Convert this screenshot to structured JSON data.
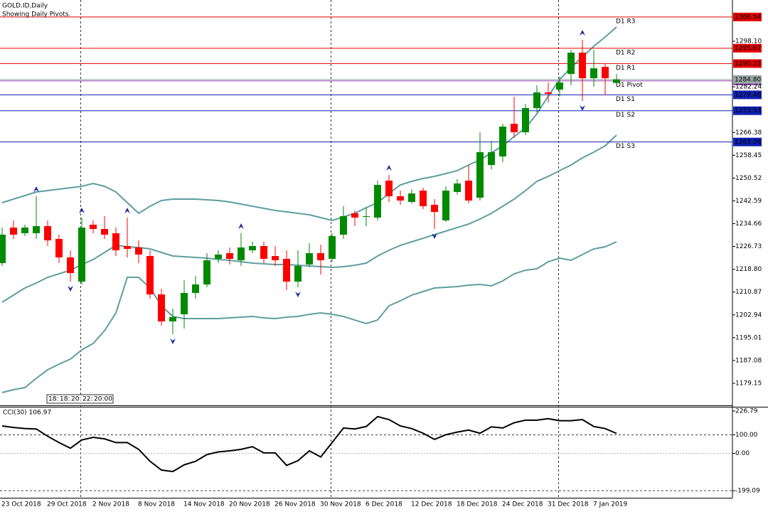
{
  "chart_data": {
    "type": "candlestick",
    "title": "GOLD.ID,Daily",
    "subtitle": "Showing Daily Pivots.",
    "categories": [
      "23 Oct 2018",
      null,
      null,
      null,
      "29 Oct 2018",
      null,
      null,
      null,
      "2 Nov 2018",
      null,
      null,
      null,
      "8 Nov 2018",
      null,
      null,
      null,
      "14 Nov 2018",
      null,
      null,
      null,
      "20 Nov 2018",
      null,
      null,
      null,
      "26 Nov 2018",
      null,
      null,
      null,
      "30 Nov 2018",
      null,
      null,
      null,
      "6 Dec 2018",
      null,
      null,
      null,
      "12 Dec 2018",
      null,
      null,
      null,
      "18 Dec 2018",
      null,
      null,
      null,
      "24 Dec 2018",
      null,
      null,
      null,
      "31 Dec 2018",
      null,
      null,
      null,
      "7 Jan 2019",
      null,
      null
    ],
    "open": [
      1220.93,
      1233.3,
      1231.33,
      1231.33,
      1233.8,
      1229.35,
      1222.92,
      1214.51,
      1234.3,
      1232.81,
      1231.33,
      1226.87,
      1226.38,
      1223.41,
      1210.06,
      1200.66,
      1203.14,
      1210.56,
      1213.52,
      1222.42,
      1224.4,
      1221.93,
      1225.39,
      1226.87,
      1223.41,
      1222.42,
      1214.51,
      1220.44,
      1224.4,
      1222.42,
      1230.83,
      1238.25,
      1237.01,
      1236.77,
      1249.63,
      1244.18,
      1242.21,
      1246.16,
      1241.22,
      1235.78,
      1245.67,
      1249.63,
      1243.69,
      1255.07,
      1258.03,
      1269.41,
      1266.44,
      1274.85,
      1280.29,
      1281.28,
      1286.72,
      1294.14,
      1285.24,
      1289.19,
      1283.6
    ],
    "high": [
      1233.3,
      1235.78,
      1234.3,
      1244.18,
      1235.78,
      1230.83,
      1225.39,
      1236.77,
      1235.78,
      1237.26,
      1233.3,
      1236.77,
      1228.85,
      1225.39,
      1212.0,
      1205.11,
      1215.0,
      1216.48,
      1224.4,
      1225.39,
      1226.38,
      1231.33,
      1228.36,
      1228.36,
      1226.87,
      1225.39,
      1225.39,
      1227.86,
      1227.37,
      1231.33,
      1240.72,
      1239.24,
      1240.23,
      1249.63,
      1251.61,
      1246.16,
      1246.66,
      1247.15,
      1243.2,
      1247.65,
      1250.12,
      1255.07,
      1266.44,
      1263.48,
      1269.41,
      1278.81,
      1276.33,
      1282.76,
      1283.75,
      1285.73,
      1295.13,
      1298.59,
      1295.13,
      1290.18,
      1286.7
    ],
    "low": [
      1219.95,
      1229.35,
      1230.34,
      1229.35,
      1226.87,
      1220.93,
      1214.51,
      1213.52,
      1231.33,
      1229.35,
      1223.41,
      1222.92,
      1220.93,
      1208.57,
      1199.18,
      1196.21,
      1198.19,
      1208.57,
      1212.53,
      1220.93,
      1220.44,
      1219.95,
      1224.4,
      1220.93,
      1219.95,
      1211.55,
      1212.53,
      1219.46,
      1216.99,
      1221.43,
      1229.35,
      1233.8,
      1233.8,
      1235.78,
      1242.21,
      1241.22,
      1241.71,
      1239.73,
      1232.81,
      1235.29,
      1244.68,
      1241.71,
      1242.7,
      1253.58,
      1256.06,
      1264.47,
      1265.45,
      1273.37,
      1276.83,
      1278.81,
      1282.76,
      1277.32,
      1282.27,
      1279.3,
      1283.0
    ],
    "close": [
      1230.83,
      1230.83,
      1233.3,
      1233.8,
      1228.85,
      1222.92,
      1217.48,
      1233.3,
      1232.81,
      1230.83,
      1225.39,
      1225.89,
      1223.91,
      1210.06,
      1200.66,
      1202.15,
      1210.56,
      1213.52,
      1221.93,
      1223.91,
      1222.42,
      1226.38,
      1226.87,
      1222.42,
      1221.93,
      1214.51,
      1219.95,
      1224.4,
      1221.93,
      1230.34,
      1237.26,
      1236.77,
      1237.26,
      1248.14,
      1244.18,
      1242.7,
      1245.17,
      1240.72,
      1238.74,
      1246.16,
      1248.63,
      1242.7,
      1259.52,
      1259.52,
      1268.42,
      1266.44,
      1274.85,
      1280.29,
      1279.8,
      1283.75,
      1294.14,
      1285.24,
      1288.7,
      1285.24,
      1284.8
    ],
    "up_color": "#008a00",
    "down_color": "#ff0000",
    "ylim": [
      1171.48,
      1312.44
    ],
    "yticks": [
      {
        "value": 1298.1,
        "label": "1298.10"
      },
      1282.24,
      1266.38,
      1258.45,
      1250.52,
      1242.59,
      1234.66,
      1226.73,
      {
        "value": 1218.8,
        "label": "1218.80"
      },
      1210.87,
      1202.94,
      1195.01,
      1187.08,
      1179.15
    ],
    "bollinger": {
      "color": "#5f9ea0",
      "upper": [
        1241.96,
        1243.2,
        1244.43,
        1245.67,
        1246.16,
        1246.66,
        1247.15,
        1247.65,
        1248.64,
        1247.65,
        1245.67,
        1241.96,
        1238.25,
        1240.72,
        1242.7,
        1243.2,
        1243.2,
        1243.2,
        1242.95,
        1242.7,
        1242.21,
        1241.46,
        1240.72,
        1239.98,
        1239.24,
        1238.74,
        1238.25,
        1237.76,
        1236.77,
        1235.78,
        1237.01,
        1238.25,
        1240.23,
        1241.96,
        1245.17,
        1248.14,
        1249.38,
        1250.37,
        1251.11,
        1252.1,
        1253.09,
        1255.07,
        1256.8,
        1259.27,
        1261.74,
        1264.96,
        1267.93,
        1272.87,
        1279.05,
        1284.74,
        1288.95,
        1292.66,
        1296.37,
        1299.58,
        1303.04
      ],
      "middle": [
        1207.34,
        1209.81,
        1212.28,
        1214.01,
        1215.99,
        1217.23,
        1218.47,
        1220.44,
        1222.18,
        1224.65,
        1227.12,
        1226.63,
        1226.38,
        1225.88,
        1224.65,
        1223.41,
        1223.16,
        1222.92,
        1222.67,
        1222.18,
        1221.93,
        1221.43,
        1220.94,
        1220.69,
        1220.44,
        1220.44,
        1220.2,
        1219.95,
        1219.7,
        1219.46,
        1219.7,
        1220.2,
        1220.94,
        1223.41,
        1225.39,
        1227.12,
        1228.36,
        1229.59,
        1230.83,
        1232.07,
        1233.3,
        1234.54,
        1236.27,
        1238.25,
        1240.72,
        1243.2,
        1246.16,
        1249.38,
        1251.11,
        1253.09,
        1255.07,
        1257.54,
        1259.52,
        1261.74,
        1265.45
      ],
      "lower": [
        1175.93,
        1176.92,
        1177.66,
        1180.88,
        1183.84,
        1185.82,
        1187.55,
        1190.77,
        1192.99,
        1197.44,
        1203.63,
        1215.99,
        1215.99,
        1212.28,
        1206.1,
        1202.39,
        1201.65,
        1201.65,
        1201.65,
        1201.65,
        1201.9,
        1202.14,
        1202.39,
        1201.9,
        1201.65,
        1202.14,
        1202.39,
        1203.13,
        1203.63,
        1203.13,
        1202.39,
        1201.15,
        1199.92,
        1201.15,
        1206.1,
        1207.83,
        1209.81,
        1211.05,
        1212.28,
        1212.53,
        1212.78,
        1213.27,
        1213.52,
        1213.03,
        1214.76,
        1217.23,
        1218.47,
        1218.96,
        1221.43,
        1222.67,
        1221.93,
        1223.91,
        1225.88,
        1226.63,
        1228.36
      ]
    },
    "pivots": [
      {
        "label": "D1 R3",
        "value": 1306.54,
        "color": "#e00000"
      },
      {
        "label": "D1 R2",
        "value": 1295.67,
        "color": "#e00000"
      },
      {
        "label": "D1 R1",
        "value": 1290.33,
        "color": "#e00000"
      },
      {
        "label": "D1 Pivot",
        "value": 1284.31,
        "color": "#8a3aa8",
        "text_color": "#5f9ea0"
      },
      {
        "label": "D1 S1",
        "value": 1279.46,
        "color": "#1020b0"
      },
      {
        "label": "D1 S2",
        "value": 1273.93,
        "color": "#1020b0"
      },
      {
        "label": "D1 S3",
        "value": 1263.06,
        "color": "#1020b0"
      }
    ],
    "price_line": {
      "value": 1284.8,
      "value_label": "1284.80",
      "color": "#9aa7a7"
    },
    "fractals_up": [
      3,
      7,
      11,
      21,
      34,
      51
    ],
    "fractals_down": [
      6,
      15,
      26,
      38,
      51
    ],
    "fractal_color": "#1a2aa0",
    "period_separators": [
      7,
      29,
      49
    ],
    "session_labels": [
      "18:",
      "18:",
      "20:",
      "22:",
      "20:00"
    ],
    "cci": {
      "label": "CCI(30) 106.97",
      "color": "#000000",
      "values": [
        147,
        139,
        133,
        131,
        92,
        58,
        28,
        72,
        86,
        78,
        58,
        58,
        22,
        -42,
        -89,
        -97,
        -61,
        -42,
        -6,
        8,
        14,
        22,
        36,
        3,
        3,
        -64,
        -39,
        14,
        -19,
        58,
        136,
        131,
        144,
        197,
        181,
        147,
        133,
        108,
        75,
        100,
        114,
        125,
        108,
        142,
        136,
        164,
        178,
        178,
        186,
        175,
        175,
        181,
        144,
        133,
        106.97
      ],
      "ylim": [
        -237.1,
        249.6
      ],
      "yticks": [
        226.79,
        {
          "value": 100,
          "label": "100.00"
        },
        {
          "value": 0,
          "label": "0.00"
        },
        -199.09
      ],
      "levels": [
        100,
        0,
        -199.09
      ]
    }
  }
}
